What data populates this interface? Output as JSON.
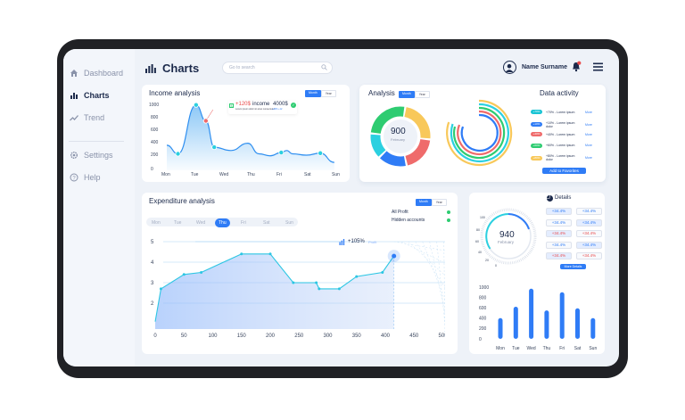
{
  "app": {
    "title": "Charts"
  },
  "sidebar": {
    "items": [
      {
        "label": "Dashboard",
        "icon": "home-icon"
      },
      {
        "label": "Charts",
        "icon": "chart-icon",
        "active": true
      },
      {
        "label": "Trend",
        "icon": "trend-icon"
      },
      {
        "label": "Settings",
        "icon": "gear-icon"
      },
      {
        "label": "Help",
        "icon": "help-icon"
      }
    ]
  },
  "header": {
    "search_placeholder": "Go to search",
    "user_name": "Name Surname"
  },
  "toggle": {
    "month": "Month",
    "year": "Year"
  },
  "income": {
    "title": "Income analysis",
    "tooltip_pct": "+120$",
    "tooltip_label": "income",
    "tooltip_value": "4000$",
    "tooltip_sub": "Lorem ipsum dolor sit amet consectetur",
    "tooltip_badge": "+40% +12"
  },
  "analysis": {
    "title": "Analysis",
    "center_value": "900",
    "center_label": "February"
  },
  "activity": {
    "title": "Data activity",
    "rows": [
      {
        "pct": "+70%",
        "text": "+70% - Lorem ipsum",
        "link": "More",
        "color": "#19c4d4"
      },
      {
        "pct": "+10%",
        "text": "+10% - Lorem ipsum dolor",
        "link": "More",
        "color": "#2f7cf6"
      },
      {
        "pct": "+40%",
        "text": "+40% - Lorem ipsum",
        "link": "More",
        "color": "#ef6b6b"
      },
      {
        "pct": "+60%",
        "text": "+60% - Lorem ipsum",
        "link": "More",
        "color": "#2ecc71"
      },
      {
        "pct": "+80%",
        "text": "+80% - Lorem ipsum dolor",
        "link": "More",
        "color": "#f8c85a"
      }
    ],
    "button": "Add to Favorites"
  },
  "expenditure": {
    "title": "Expenditure analysis",
    "days": [
      "Mon",
      "Tue",
      "Wed",
      "Thu",
      "Fri",
      "Sat",
      "Sun"
    ],
    "selected_day": "Thu",
    "legend": [
      "All Profit",
      "Hidden accounts"
    ],
    "tooltip_pct": "+105%",
    "tooltip_sub": "Profit"
  },
  "details": {
    "title": "Details",
    "gauge_value": "940",
    "gauge_label": "February",
    "gauge_ticks": [
      "80",
      "60",
      "40",
      "20",
      "0",
      "100"
    ],
    "left": [
      "+34.4%",
      "+34.4%",
      "+34.4%",
      "+34.4%",
      "+34.4%"
    ],
    "right": [
      "+34.4%",
      "+34.4%",
      "+34.4%",
      "+34.4%",
      "+34.4%"
    ],
    "button": "More Details"
  },
  "chart_data": [
    {
      "type": "area",
      "title": "Income analysis",
      "categories": [
        "Mon",
        "Tue",
        "Wed",
        "Thu",
        "Fri",
        "Sat",
        "Sun"
      ],
      "yticks": [
        "1000",
        "800",
        "600",
        "400",
        "200",
        "0"
      ],
      "ylim": [
        0,
        1000
      ],
      "points": [
        [
          0,
          380
        ],
        [
          0.4,
          250
        ],
        [
          1.05,
          990
        ],
        [
          1.4,
          750
        ],
        [
          1.7,
          350
        ],
        [
          2.3,
          300
        ],
        [
          2.9,
          410
        ],
        [
          3.3,
          250
        ],
        [
          3.7,
          220
        ],
        [
          4.1,
          270
        ],
        [
          4.3,
          300
        ],
        [
          4.5,
          250
        ],
        [
          5,
          230
        ],
        [
          5.5,
          260
        ],
        [
          6,
          120
        ]
      ],
      "markers": [
        0.4,
        1.05,
        1.4,
        1.7,
        4.1,
        5.5
      ]
    },
    {
      "type": "pie",
      "title": "Analysis",
      "values": [
        24,
        20,
        16,
        14,
        26
      ],
      "colors": [
        "#f8c85a",
        "#ef6b6b",
        "#2f7cf6",
        "#2bd0e0",
        "#2ecc71"
      ]
    },
    {
      "type": "line",
      "title": "Expenditure analysis",
      "x": [
        0,
        10,
        50,
        80,
        150,
        200,
        240,
        280,
        285,
        320,
        350,
        395,
        415
      ],
      "y": [
        1.1,
        2.7,
        3.4,
        3.5,
        4.4,
        4.4,
        3.0,
        3.0,
        2.7,
        2.7,
        3.3,
        3.5,
        4.3
      ],
      "xticks": [
        "0",
        "50",
        "100",
        "150",
        "200",
        "250",
        "300",
        "350",
        "400",
        "450",
        "500"
      ],
      "yticks": [
        "5",
        "4",
        "3",
        "2"
      ],
      "xlim": [
        0,
        500
      ],
      "ylim": [
        1,
        5
      ]
    },
    {
      "type": "bar",
      "title": "Details",
      "categories": [
        "Mon",
        "Tue",
        "Wed",
        "Thu",
        "Fri",
        "Sat",
        "Sun"
      ],
      "values": [
        400,
        620,
        970,
        550,
        900,
        590,
        400
      ],
      "yticks": [
        "1000",
        "800",
        "600",
        "400",
        "200",
        "0"
      ],
      "ylim": [
        0,
        1000
      ]
    }
  ]
}
